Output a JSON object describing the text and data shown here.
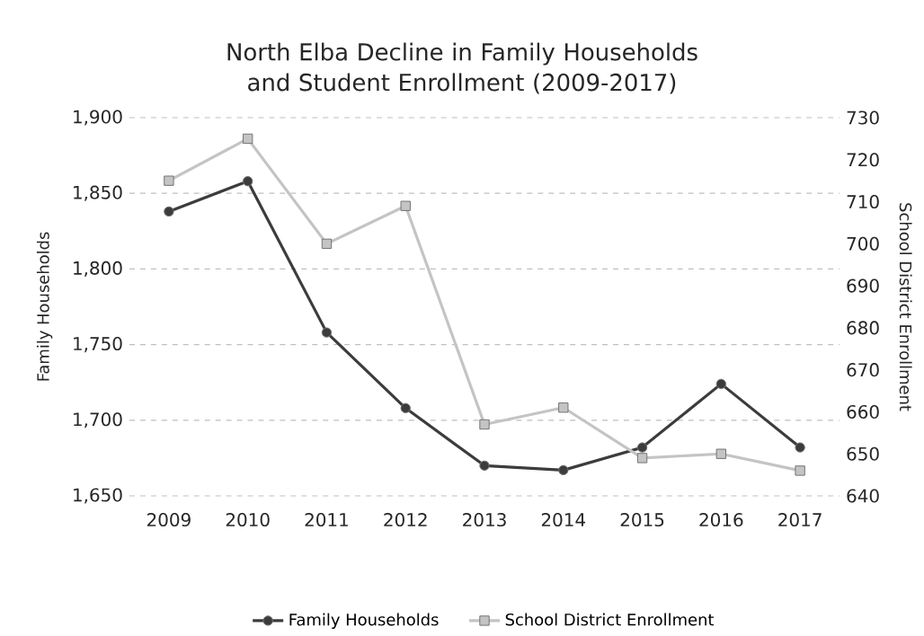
{
  "chart_data": {
    "type": "line",
    "title": "North Elba Decline in Family Households and Student Enrollment (2009-2017)",
    "ylabel": "Family Households",
    "y2label": "School District Enrollment",
    "categories": [
      "2009",
      "2010",
      "2011",
      "2012",
      "2013",
      "2014",
      "2015",
      "2016",
      "2017"
    ],
    "series": [
      {
        "name": "Family Households",
        "color": "#3c3c3c",
        "marker": "circle",
        "values": [
          1838,
          1858,
          1758,
          1708,
          1670,
          1667,
          1682,
          1724,
          1682
        ]
      },
      {
        "name": "School District Enrollment",
        "color": "#c4c4c4",
        "marker": "square",
        "axis": "y2",
        "values": [
          715,
          725,
          700,
          709,
          657,
          661,
          649,
          650,
          646
        ]
      }
    ],
    "ylim": [
      1650,
      1900
    ],
    "yticks": [
      {
        "value": 1650,
        "label": "1,650"
      },
      {
        "value": 1700,
        "label": "1,700"
      },
      {
        "value": 1750,
        "label": "1,750"
      },
      {
        "value": 1800,
        "label": "1,800"
      },
      {
        "value": 1850,
        "label": "1,850"
      },
      {
        "value": 1900,
        "label": "1,900"
      }
    ],
    "y2lim": [
      640,
      730
    ],
    "y2ticks": [
      640,
      650,
      660,
      670,
      680,
      690,
      700,
      710,
      720,
      730
    ],
    "grid": "y",
    "legend": "bottom",
    "line_style": "solid"
  }
}
